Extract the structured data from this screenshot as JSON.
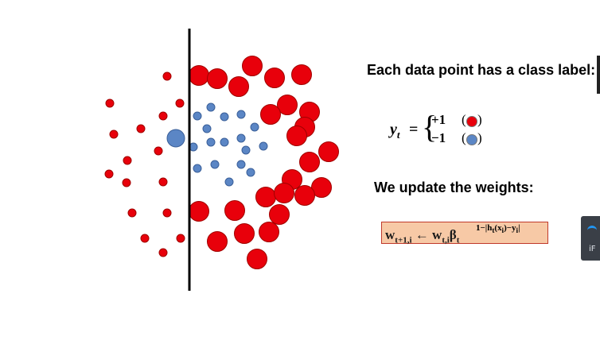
{
  "slide": {
    "heading_label": "Each data point has  a class label:",
    "update_label": "We update the weights:",
    "equation": {
      "lhs": "y",
      "lhs_sub": "t",
      "equals": "=",
      "case_pos": "+1",
      "case_neg": "−1",
      "paren_open": "(",
      "paren_close": ")"
    },
    "formula": {
      "w_next": "w",
      "w_next_sub": "t+1,i",
      "arrow": "←",
      "w_cur": "w",
      "w_cur_sub": "t,i",
      "beta": "β",
      "beta_sub": "t",
      "exponent": "1−|h",
      "exponent_sub": "t",
      "exponent_rest": "(x",
      "exponent_sub2": "i",
      "exponent_rest2": ")−y",
      "exponent_sub3": "i",
      "exponent_end": "|"
    }
  },
  "widget": {
    "label": "iF"
  },
  "colors": {
    "red": "#e8000b",
    "red_stroke": "#a00000",
    "blue": "#5b86c5",
    "blue_stroke": "#3a5f99",
    "formula_bg": "#f7c9a6",
    "formula_border": "#c0392b"
  },
  "icons": {
    "ring": "loading-ring-icon"
  }
}
